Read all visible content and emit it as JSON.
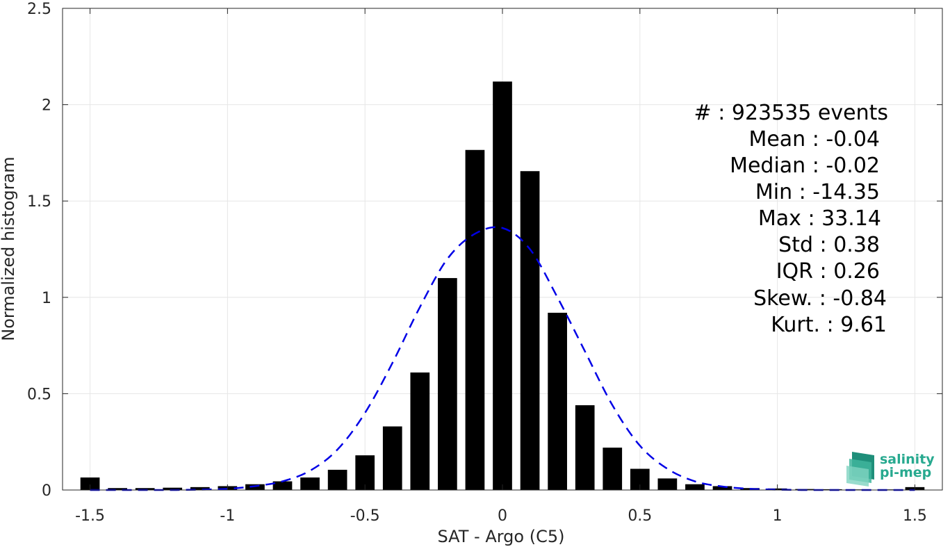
{
  "chart_data": {
    "type": "bar",
    "xlabel": "SAT - Argo (C5)",
    "ylabel": "Normalized histogram",
    "xlim": [
      -1.6,
      1.6
    ],
    "ylim": [
      0,
      2.5
    ],
    "x_ticks": [
      -1.5,
      -1,
      -0.5,
      0,
      0.5,
      1,
      1.5
    ],
    "x_tick_labels": [
      "-1.5",
      "-1",
      "-0.5",
      "0",
      "0.5",
      "1",
      "1.5"
    ],
    "y_ticks": [
      0,
      0.5,
      1,
      1.5,
      2,
      2.5
    ],
    "y_tick_labels": [
      "0",
      "0.5",
      "1",
      "1.5",
      "2",
      "2.5"
    ],
    "grid": true,
    "bar_width": 0.07,
    "series": [
      {
        "type": "bar",
        "color": "#000000",
        "x": [
          -1.5,
          -1.4,
          -1.3,
          -1.2,
          -1.1,
          -1.0,
          -0.9,
          -0.8,
          -0.7,
          -0.6,
          -0.5,
          -0.4,
          -0.3,
          -0.2,
          -0.1,
          0.0,
          0.1,
          0.2,
          0.3,
          0.4,
          0.5,
          0.6,
          0.7,
          0.8,
          0.9,
          1.0,
          1.1,
          1.2,
          1.3,
          1.4,
          1.5
        ],
        "values": [
          0.065,
          0.01,
          0.01,
          0.012,
          0.015,
          0.02,
          0.03,
          0.045,
          0.065,
          0.105,
          0.18,
          0.33,
          0.61,
          1.1,
          1.765,
          2.12,
          1.655,
          0.92,
          0.44,
          0.22,
          0.11,
          0.06,
          0.03,
          0.02,
          0.01,
          0.008,
          0.005,
          0.004,
          0.003,
          0.003,
          0.015
        ]
      },
      {
        "type": "line",
        "style": "dashed",
        "color": "#0000e6",
        "x": [
          -1.5,
          -1.4,
          -1.3,
          -1.2,
          -1.1,
          -1.0,
          -0.9,
          -0.8,
          -0.7,
          -0.6,
          -0.5,
          -0.4,
          -0.3,
          -0.2,
          -0.1,
          0.0,
          0.1,
          0.2,
          0.3,
          0.4,
          0.5,
          0.6,
          0.7,
          0.8,
          0.9,
          1.0,
          1.1,
          1.2,
          1.3,
          1.4,
          1.5
        ],
        "values": [
          0.0,
          0.0,
          0.0,
          0.0,
          0.002,
          0.006,
          0.02,
          0.045,
          0.1,
          0.21,
          0.4,
          0.66,
          0.95,
          1.2,
          1.33,
          1.36,
          1.25,
          1.0,
          0.72,
          0.44,
          0.23,
          0.11,
          0.045,
          0.018,
          0.006,
          0.002,
          0.0,
          0.0,
          0.0,
          0.0,
          0.0
        ]
      }
    ]
  },
  "stats": {
    "events": "#  : 923535 events",
    "mean": "Mean : -0.04",
    "median": "Median : -0.02",
    "min": "Min : -14.35",
    "max": "Max : 33.14",
    "std": "Std : 0.38",
    "iqr": "IQR : 0.26",
    "skew": "Skew. : -0.84",
    "kurt": "Kurt. : 9.61"
  },
  "logo": {
    "line1": "salinity",
    "line2": "pi-mep",
    "color": "#27a98f"
  }
}
